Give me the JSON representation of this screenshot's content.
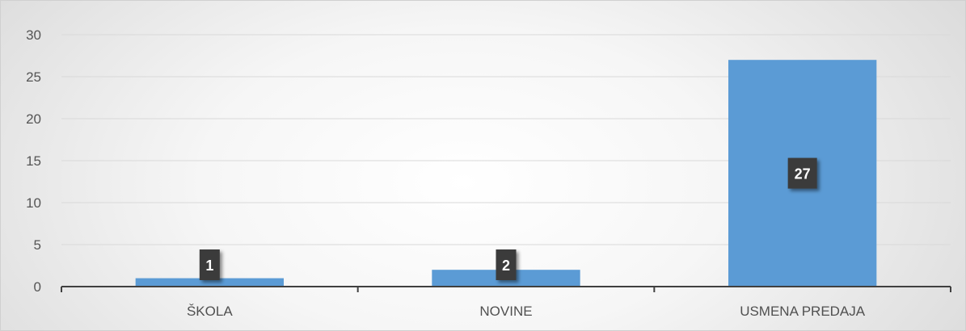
{
  "chart_data": {
    "type": "bar",
    "categories": [
      "ŠKOLA",
      "NOVINE",
      "USMENA PREDAJA"
    ],
    "values": [
      1,
      2,
      27
    ],
    "data_labels": [
      "1",
      "2",
      "27"
    ],
    "ylim": [
      0,
      30
    ],
    "yticks": [
      0,
      5,
      10,
      15,
      20,
      25,
      30
    ],
    "grid": true,
    "bar_color": "#5b9bd5",
    "label_box_color": "#3a3a3a"
  }
}
